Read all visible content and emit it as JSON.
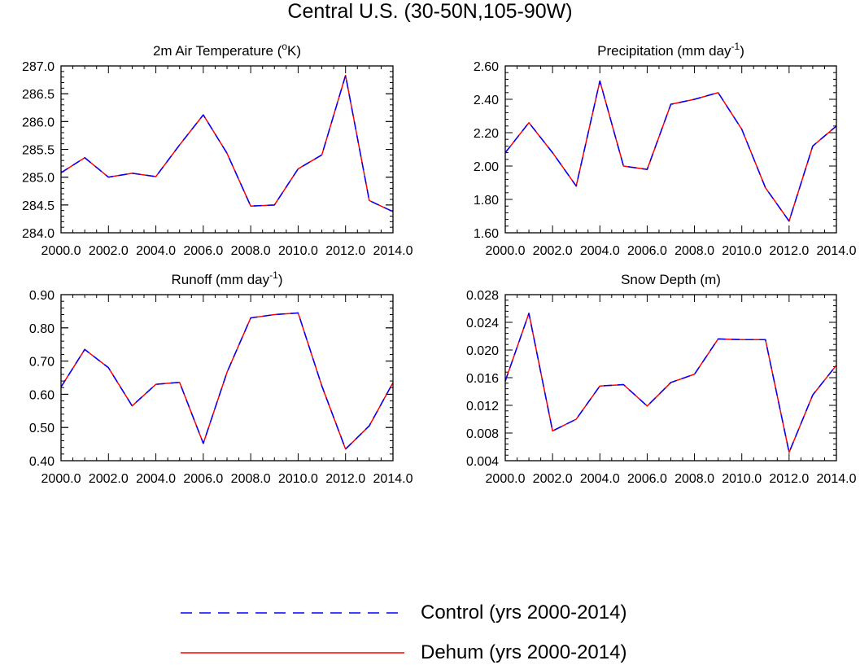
{
  "figure": {
    "title": "Central U.S. (30-50N,105-90W)"
  },
  "legend": {
    "control": {
      "label": "Control (yrs 2000-2014)",
      "color": "#0000ff",
      "style": "dashed"
    },
    "dehum": {
      "label": "Dehum (yrs 2000-2014)",
      "color": "#ff0000",
      "style": "solid"
    }
  },
  "chart_data": [
    {
      "type": "line",
      "title": "2m Air Temperature (",
      "title_sup": "o",
      "title_after": "K)",
      "x": [
        2000,
        2001,
        2002,
        2003,
        2004,
        2005,
        2006,
        2007,
        2008,
        2009,
        2010,
        2011,
        2012,
        2013,
        2014
      ],
      "xlim": [
        2000,
        2014
      ],
      "ylim": [
        284.0,
        287.0
      ],
      "xticks": [
        2000,
        2002,
        2004,
        2006,
        2008,
        2010,
        2012,
        2014
      ],
      "xtick_labels": [
        "2000.0",
        "2002.0",
        "2004.0",
        "2006.0",
        "2008.0",
        "2010.0",
        "2012.0",
        "2014.0"
      ],
      "yticks": [
        284.0,
        284.5,
        285.0,
        285.5,
        286.0,
        286.5,
        287.0
      ],
      "ytick_labels": [
        "284.0",
        "284.5",
        "285.0",
        "285.5",
        "286.0",
        "286.5",
        "287.0"
      ],
      "series": [
        {
          "name": "Control (yrs 2000-2014)",
          "values": [
            285.08,
            285.35,
            285.0,
            285.07,
            285.01,
            285.58,
            286.12,
            285.43,
            284.48,
            284.5,
            285.15,
            285.4,
            286.83,
            284.58,
            284.38
          ]
        },
        {
          "name": "Dehum (yrs 2000-2014)",
          "values": [
            285.08,
            285.35,
            285.0,
            285.07,
            285.01,
            285.58,
            286.12,
            285.43,
            284.48,
            284.5,
            285.15,
            285.4,
            286.83,
            284.58,
            284.38
          ]
        }
      ]
    },
    {
      "type": "line",
      "title": "Precipitation (mm day",
      "title_sup": "-1",
      "title_after": ")",
      "x": [
        2000,
        2001,
        2002,
        2003,
        2004,
        2005,
        2006,
        2007,
        2008,
        2009,
        2010,
        2011,
        2012,
        2013,
        2014
      ],
      "xlim": [
        2000,
        2014
      ],
      "ylim": [
        1.6,
        2.6
      ],
      "xticks": [
        2000,
        2002,
        2004,
        2006,
        2008,
        2010,
        2012,
        2014
      ],
      "xtick_labels": [
        "2000.0",
        "2002.0",
        "2004.0",
        "2006.0",
        "2008.0",
        "2010.0",
        "2012.0",
        "2014.0"
      ],
      "yticks": [
        1.6,
        1.8,
        2.0,
        2.2,
        2.4,
        2.6
      ],
      "ytick_labels": [
        "1.60",
        "1.80",
        "2.00",
        "2.20",
        "2.40",
        "2.60"
      ],
      "series": [
        {
          "name": "Control (yrs 2000-2014)",
          "values": [
            2.08,
            2.26,
            2.08,
            1.88,
            2.51,
            2.0,
            1.98,
            2.37,
            2.4,
            2.44,
            2.22,
            1.87,
            1.67,
            2.12,
            2.24
          ]
        },
        {
          "name": "Dehum (yrs 2000-2014)",
          "values": [
            2.08,
            2.26,
            2.08,
            1.88,
            2.51,
            2.0,
            1.98,
            2.37,
            2.4,
            2.44,
            2.22,
            1.87,
            1.67,
            2.12,
            2.24
          ]
        }
      ]
    },
    {
      "type": "line",
      "title": "Runoff (mm day",
      "title_sup": "-1",
      "title_after": ")",
      "x": [
        2000,
        2001,
        2002,
        2003,
        2004,
        2005,
        2006,
        2007,
        2008,
        2009,
        2010,
        2011,
        2012,
        2013,
        2014
      ],
      "xlim": [
        2000,
        2014
      ],
      "ylim": [
        0.4,
        0.9
      ],
      "xticks": [
        2000,
        2002,
        2004,
        2006,
        2008,
        2010,
        2012,
        2014
      ],
      "xtick_labels": [
        "2000.0",
        "2002.0",
        "2004.0",
        "2006.0",
        "2008.0",
        "2010.0",
        "2012.0",
        "2014.0"
      ],
      "yticks": [
        0.4,
        0.5,
        0.6,
        0.7,
        0.8,
        0.9
      ],
      "ytick_labels": [
        "0.40",
        "0.50",
        "0.60",
        "0.70",
        "0.80",
        "0.90"
      ],
      "series": [
        {
          "name": "Control (yrs 2000-2014)",
          "values": [
            0.622,
            0.735,
            0.68,
            0.565,
            0.63,
            0.636,
            0.452,
            0.666,
            0.83,
            0.84,
            0.845,
            0.625,
            0.435,
            0.505,
            0.635
          ]
        },
        {
          "name": "Dehum (yrs 2000-2014)",
          "values": [
            0.622,
            0.735,
            0.68,
            0.565,
            0.63,
            0.636,
            0.452,
            0.666,
            0.83,
            0.84,
            0.845,
            0.625,
            0.435,
            0.505,
            0.635
          ]
        }
      ]
    },
    {
      "type": "line",
      "title": "Snow Depth (m)",
      "title_sup": "",
      "title_after": "",
      "x": [
        2000,
        2001,
        2002,
        2003,
        2004,
        2005,
        2006,
        2007,
        2008,
        2009,
        2010,
        2011,
        2012,
        2013,
        2014
      ],
      "xlim": [
        2000,
        2014
      ],
      "ylim": [
        0.004,
        0.028
      ],
      "xticks": [
        2000,
        2002,
        2004,
        2006,
        2008,
        2010,
        2012,
        2014
      ],
      "xtick_labels": [
        "2000.0",
        "2002.0",
        "2004.0",
        "2006.0",
        "2008.0",
        "2010.0",
        "2012.0",
        "2014.0"
      ],
      "yticks": [
        0.004,
        0.008,
        0.012,
        0.016,
        0.02,
        0.024,
        0.028
      ],
      "ytick_labels": [
        "0.004",
        "0.008",
        "0.012",
        "0.016",
        "0.020",
        "0.024",
        "0.028"
      ],
      "series": [
        {
          "name": "Control (yrs 2000-2014)",
          "values": [
            0.0155,
            0.0253,
            0.0083,
            0.01,
            0.0148,
            0.015,
            0.0119,
            0.0153,
            0.0165,
            0.0216,
            0.0215,
            0.0215,
            0.0052,
            0.0135,
            0.0178
          ]
        },
        {
          "name": "Dehum (yrs 2000-2014)",
          "values": [
            0.0155,
            0.0253,
            0.0083,
            0.01,
            0.0148,
            0.015,
            0.0119,
            0.0153,
            0.0165,
            0.0216,
            0.0215,
            0.0215,
            0.0052,
            0.0135,
            0.0178
          ]
        }
      ]
    }
  ]
}
